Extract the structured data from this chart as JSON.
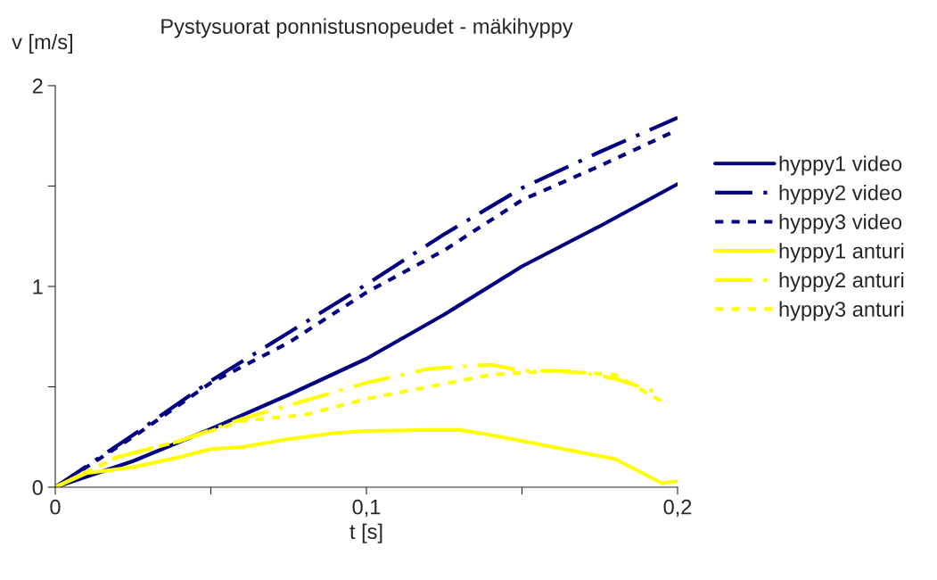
{
  "chart_data": {
    "type": "line",
    "title": "Pystysuorat ponnistusnopeudet - mäkihyppy",
    "xlabel": "t [s]",
    "ylabel": "v [m/s]",
    "xlim": [
      0,
      0.2
    ],
    "ylim": [
      0,
      2
    ],
    "xticks": [
      0,
      {
        "value": 0.05,
        "label": null
      },
      {
        "value": 0.1,
        "label": "0,1"
      },
      {
        "value": 0.15,
        "label": null
      },
      {
        "value": 0.2,
        "label": "0,2"
      }
    ],
    "yticks": [
      0,
      {
        "value": 0.5,
        "label": null
      },
      1,
      {
        "value": 1.5,
        "label": null
      },
      2
    ],
    "grid": false,
    "legend": "right",
    "marker": "none",
    "series": [
      {
        "name": "hyppy1 video",
        "color": "#000080",
        "line_style": "solid",
        "x": [
          0,
          0.025,
          0.05,
          0.075,
          0.1,
          0.125,
          0.15,
          0.175,
          0.2
        ],
        "values": [
          0,
          0.13,
          0.29,
          0.46,
          0.64,
          0.86,
          1.1,
          1.3,
          1.51
        ]
      },
      {
        "name": "hyppy2 video",
        "color": "#000080",
        "line_style": "dashed",
        "x": [
          0,
          0.025,
          0.05,
          0.075,
          0.1,
          0.125,
          0.15,
          0.175,
          0.2
        ],
        "values": [
          0,
          0.26,
          0.53,
          0.77,
          1.01,
          1.26,
          1.49,
          1.67,
          1.84
        ]
      },
      {
        "name": "hyppy3 video",
        "color": "#000080",
        "line_style": "dotted",
        "x": [
          0,
          0.025,
          0.05,
          0.075,
          0.1,
          0.125,
          0.15,
          0.175,
          0.2
        ],
        "values": [
          0,
          0.25,
          0.52,
          0.72,
          0.97,
          1.18,
          1.43,
          1.6,
          1.78
        ]
      },
      {
        "name": "hyppy1 anturi",
        "color": "#ffff00",
        "line_style": "solid",
        "x": [
          0,
          0.01,
          0.025,
          0.04,
          0.05,
          0.06,
          0.075,
          0.09,
          0.1,
          0.12,
          0.13,
          0.14,
          0.15,
          0.16,
          0.17,
          0.18,
          0.19,
          0.195,
          0.2
        ],
        "values": [
          0,
          0.07,
          0.1,
          0.15,
          0.19,
          0.2,
          0.24,
          0.27,
          0.28,
          0.285,
          0.285,
          0.26,
          0.23,
          0.2,
          0.17,
          0.14,
          0.06,
          0.02,
          0.03
        ]
      },
      {
        "name": "hyppy2 anturi",
        "color": "#ffff00",
        "line_style": "dashed",
        "x": [
          0,
          0.02,
          0.04,
          0.06,
          0.08,
          0.1,
          0.12,
          0.14,
          0.15,
          0.16,
          0.17,
          0.18,
          0.19,
          0.195
        ],
        "values": [
          0,
          0.15,
          0.23,
          0.34,
          0.43,
          0.52,
          0.59,
          0.61,
          0.58,
          0.58,
          0.57,
          0.54,
          0.49,
          0.46
        ]
      },
      {
        "name": "hyppy3 anturi",
        "color": "#ffff00",
        "line_style": "dotted",
        "x": [
          0,
          0.02,
          0.04,
          0.06,
          0.08,
          0.1,
          0.12,
          0.14,
          0.16,
          0.18,
          0.19,
          0.197
        ],
        "values": [
          0,
          0.15,
          0.23,
          0.33,
          0.36,
          0.44,
          0.5,
          0.56,
          0.58,
          0.56,
          0.47,
          0.41
        ]
      }
    ]
  }
}
